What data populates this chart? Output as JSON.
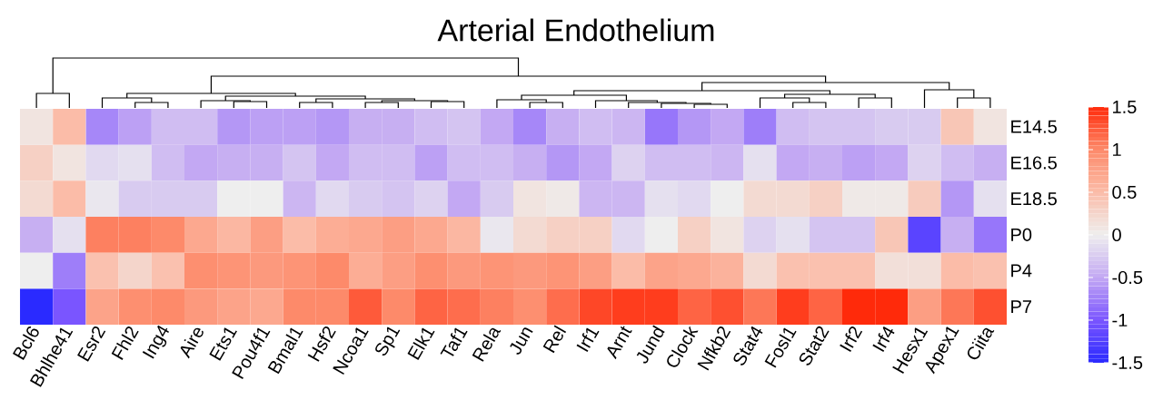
{
  "chart_data": {
    "type": "heatmap",
    "title": "Arterial Endothelium",
    "categories": [
      "Bcl6",
      "Bhlhe41",
      "Esr2",
      "Fhl2",
      "Ing4",
      "Aire",
      "Ets1",
      "Pou4f1",
      "Bmal1",
      "Hsf2",
      "Ncoa1",
      "Sp1",
      "Elk1",
      "Taf1",
      "Rela",
      "Jun",
      "Rel",
      "Irf1",
      "Arnt",
      "Jund",
      "Clock",
      "Nfkb2",
      "Stat4",
      "Fosl1",
      "Stat2",
      "Irf2",
      "Irf4",
      "Hesx1",
      "Apex1",
      "Ciita"
    ],
    "y_categories": [
      "E14.5",
      "E16.5",
      "E18.5",
      "P0",
      "P4",
      "P7"
    ],
    "cells": [
      [
        0.1,
        0.5,
        -0.7,
        -0.55,
        -0.35,
        -0.35,
        -0.6,
        -0.55,
        -0.55,
        -0.6,
        -0.45,
        -0.45,
        -0.35,
        -0.3,
        -0.5,
        -0.7,
        -0.45,
        -0.35,
        -0.4,
        -0.8,
        -0.6,
        -0.5,
        -0.75,
        -0.35,
        -0.3,
        -0.3,
        -0.25,
        -0.25,
        0.4,
        0.1
      ],
      [
        0.3,
        0.1,
        -0.15,
        -0.1,
        -0.35,
        -0.5,
        -0.45,
        -0.45,
        -0.3,
        -0.5,
        -0.35,
        -0.35,
        -0.55,
        -0.35,
        -0.35,
        -0.45,
        -0.6,
        -0.5,
        -0.2,
        -0.35,
        -0.35,
        -0.4,
        -0.1,
        -0.5,
        -0.45,
        -0.55,
        -0.5,
        -0.2,
        -0.35,
        -0.45
      ],
      [
        0.2,
        0.5,
        -0.05,
        -0.25,
        -0.25,
        -0.25,
        0,
        0,
        -0.4,
        -0.15,
        -0.25,
        -0.3,
        -0.2,
        -0.5,
        -0.25,
        0.1,
        0.05,
        -0.4,
        -0.4,
        -0.1,
        -0.15,
        0,
        0.2,
        0.2,
        0.3,
        0.05,
        0.05,
        0.35,
        -0.6,
        -0.1
      ],
      [
        -0.45,
        -0.1,
        1.05,
        1.05,
        1.0,
        0.7,
        0.55,
        0.8,
        0.5,
        0.65,
        0.7,
        0.8,
        0.7,
        0.55,
        -0.05,
        0.2,
        0.3,
        0.3,
        -0.15,
        0,
        0.3,
        0.1,
        -0.2,
        -0.1,
        -0.3,
        -0.3,
        0.4,
        -1.2,
        -0.45,
        -0.8
      ],
      [
        0,
        -0.75,
        0.45,
        0.25,
        0.45,
        0.95,
        0.9,
        0.85,
        0.9,
        1.0,
        0.65,
        0.8,
        0.95,
        0.85,
        0.9,
        0.85,
        0.9,
        0.8,
        0.5,
        0.75,
        0.7,
        0.6,
        0.2,
        0.45,
        0.45,
        0.45,
        0.15,
        0.15,
        0.5,
        0.45
      ],
      [
        -1.5,
        -1.0,
        0.75,
        0.95,
        1.0,
        0.85,
        0.75,
        0.7,
        1.0,
        1.0,
        1.25,
        1.0,
        1.2,
        1.15,
        1.05,
        0.95,
        1.15,
        1.35,
        1.4,
        1.4,
        1.2,
        1.3,
        1.1,
        1.4,
        1.2,
        1.5,
        1.5,
        0.8,
        1.1,
        1.3
      ]
    ],
    "clim": [
      -1.5,
      1.5
    ],
    "cticks": [
      -1.5,
      -1,
      -0.5,
      0,
      0.5,
      1,
      1.5
    ]
  }
}
